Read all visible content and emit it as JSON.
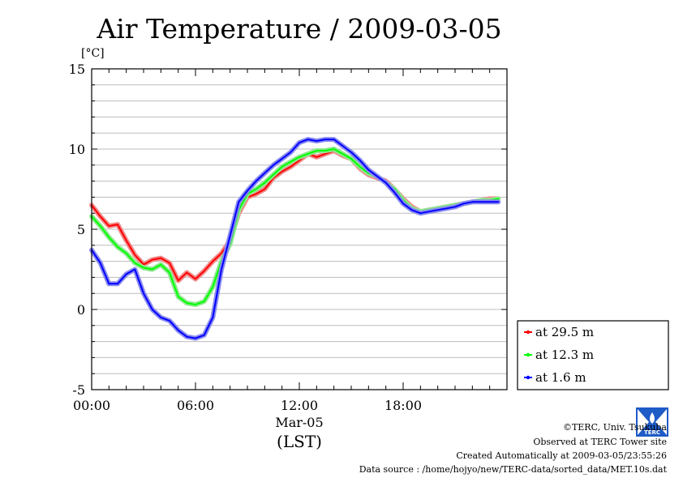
{
  "chart_data": {
    "type": "line",
    "title": "Air Temperature / 2009-03-05",
    "ylabel": "[°C]",
    "xlabel": "(LST)",
    "date_label": "Mar-05",
    "ylim": [
      -5,
      15
    ],
    "xlim": [
      0,
      24
    ],
    "yticks": [
      {
        "v": -5,
        "label": "-5"
      },
      {
        "v": 0,
        "label": "0"
      },
      {
        "v": 5,
        "label": "5"
      },
      {
        "v": 10,
        "label": "10"
      },
      {
        "v": 15,
        "label": "15"
      }
    ],
    "xticks": [
      {
        "v": 0,
        "label": "00:00"
      },
      {
        "v": 6,
        "label": "06:00"
      },
      {
        "v": 12,
        "label": "12:00"
      },
      {
        "v": 18,
        "label": "18:00"
      }
    ],
    "grid": true,
    "legend_position": "lower-right outside",
    "x": [
      0,
      0.5,
      1,
      1.5,
      2,
      2.5,
      3,
      3.5,
      4,
      4.5,
      5,
      5.5,
      6,
      6.5,
      7,
      7.5,
      8,
      8.5,
      9,
      9.5,
      10,
      10.5,
      11,
      11.5,
      12,
      12.5,
      13,
      13.5,
      14,
      14.5,
      15,
      15.5,
      16,
      16.5,
      17,
      17.5,
      18,
      18.5,
      19,
      19.5,
      20,
      20.5,
      21,
      21.5,
      22,
      22.5,
      23,
      23.5
    ],
    "series": [
      {
        "name": "at 29.5 m",
        "color": "#ff0000",
        "values": [
          6.5,
          5.8,
          5.2,
          5.3,
          4.3,
          3.4,
          2.8,
          3.1,
          3.2,
          2.9,
          1.8,
          2.3,
          1.9,
          2.4,
          3.0,
          3.5,
          4.3,
          6.0,
          7.0,
          7.2,
          7.5,
          8.2,
          8.6,
          8.9,
          9.3,
          9.7,
          9.5,
          9.7,
          9.9,
          9.6,
          9.4,
          8.8,
          8.4,
          8.2,
          8.0,
          7.5,
          6.9,
          6.4,
          6.1,
          6.2,
          6.3,
          6.4,
          6.5,
          6.6,
          6.7,
          6.8,
          6.9,
          6.9
        ]
      },
      {
        "name": "at 12.3 m",
        "color": "#00ff00",
        "values": [
          5.8,
          5.2,
          4.5,
          3.9,
          3.5,
          2.9,
          2.6,
          2.5,
          2.8,
          2.3,
          0.8,
          0.4,
          0.3,
          0.5,
          1.4,
          3.0,
          4.1,
          6.2,
          7.2,
          7.5,
          7.9,
          8.4,
          8.9,
          9.2,
          9.5,
          9.7,
          9.9,
          9.9,
          10.0,
          9.7,
          9.4,
          8.9,
          8.5,
          8.3,
          7.9,
          7.5,
          6.8,
          6.3,
          6.1,
          6.2,
          6.3,
          6.4,
          6.5,
          6.6,
          6.7,
          6.8,
          6.8,
          6.9
        ]
      },
      {
        "name": "at 1.6 m",
        "color": "#0000ff",
        "values": [
          3.7,
          2.9,
          1.6,
          1.6,
          2.2,
          2.5,
          1.0,
          0.0,
          -0.5,
          -0.7,
          -1.3,
          -1.7,
          -1.8,
          -1.6,
          -0.5,
          2.5,
          4.6,
          6.7,
          7.4,
          8.0,
          8.5,
          9.0,
          9.4,
          9.8,
          10.4,
          10.6,
          10.5,
          10.6,
          10.6,
          10.2,
          9.8,
          9.3,
          8.7,
          8.3,
          7.9,
          7.3,
          6.6,
          6.2,
          6.0,
          6.1,
          6.2,
          6.3,
          6.4,
          6.6,
          6.7,
          6.7,
          6.7,
          6.7
        ]
      }
    ]
  },
  "footer": {
    "copyright": "©TERC, Univ. Tsukuba",
    "observed": "Observed at TERC Tower site",
    "created": "Created Automatically at 2009-03-05/23:55:26",
    "source": "Data source : /home/hojyo/new/TERC-data/sorted_data/MET.10s.dat"
  },
  "logo": {
    "text": "TERC",
    "color": "#1e5bc6"
  }
}
